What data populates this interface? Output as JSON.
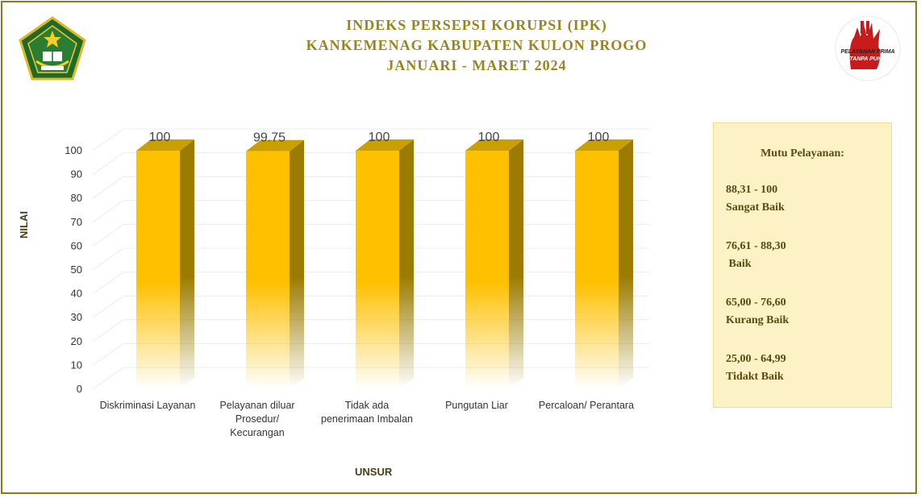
{
  "title_lines": [
    "INDEKS PERSEPSI KORUPSI (IPK)",
    "KANKEMENAG KABUPATEN KULON PROGO",
    "JANUARI - MARET 2024"
  ],
  "logos": {
    "left": "kementerian-agama-emblem",
    "right": "pelayanan-prima-tanpa-pungli",
    "right_text": [
      "PELAYANAN PRIMA",
      "TANPA PUNGLI"
    ]
  },
  "legend": {
    "title": "Mutu Pelayanan:",
    "items": [
      {
        "range": "88,31 - 100",
        "label": "Sangat Baik"
      },
      {
        "range": "76,61 - 88,30",
        "label": " Baik"
      },
      {
        "range": "65,00 - 76,60",
        "label": "Kurang Baik"
      },
      {
        "range": "25,00 - 64,99",
        "label": "Tidakt Baik"
      }
    ]
  },
  "colors": {
    "bar_front": "#ffc000",
    "bar_side": "#9c7c00",
    "bar_top": "#c9a000",
    "title": "#9a8420",
    "frame": "#8a7a1a",
    "legend_bg": "#fdf2c6"
  },
  "chart_data": {
    "type": "bar",
    "style": "3d-column",
    "title": "INDEKS PERSEPSI KORUPSI (IPK) KANKEMENAG KABUPATEN KULON PROGO JANUARI - MARET 2024",
    "xlabel": "UNSUR",
    "ylabel": "NILAI",
    "categories": [
      [
        "Diskriminasi Layanan"
      ],
      [
        "Pelayanan diluar",
        "Prosedur/",
        "Kecurangan"
      ],
      [
        "Tidak ada",
        "penerimaan Imbalan"
      ],
      [
        "Pungutan Liar"
      ],
      [
        "Percaloan/ Perantara"
      ]
    ],
    "values": [
      100,
      99.75,
      100,
      100,
      100
    ],
    "data_labels": [
      "100",
      "99.75",
      "100",
      "100",
      "100"
    ],
    "ylim": [
      0,
      100
    ],
    "yticks": [
      0,
      10,
      20,
      30,
      40,
      50,
      60,
      70,
      80,
      90,
      100
    ],
    "grid": true,
    "legend": "none"
  }
}
